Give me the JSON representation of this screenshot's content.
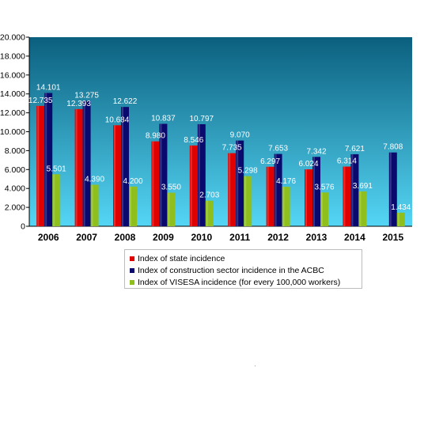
{
  "colors": {
    "state": "#e00000",
    "acbc": "#0a0a6e",
    "visesa": "#8fbf1c",
    "bar_label": "#ffffff",
    "plot_bg_top": "#0b5f7e",
    "plot_bg_bottom": "#55d6f5"
  },
  "legend": [
    {
      "key": "state",
      "label": "Index of state incidence"
    },
    {
      "key": "acbc",
      "label": "Index of construction sector incidence in the ACBC"
    },
    {
      "key": "visesa",
      "label": "Index of VISESA incidence (for every 100,000 workers)"
    }
  ],
  "chart_data": {
    "type": "bar",
    "categories": [
      "2006",
      "2007",
      "2008",
      "2009",
      "2010",
      "2011",
      "2012",
      "2013",
      "2014",
      "2015"
    ],
    "series": [
      {
        "key": "state",
        "name": "Index of state incidence",
        "values": [
          12735,
          12393,
          10684,
          8980,
          8546,
          7735,
          6297,
          6024,
          6314,
          null
        ],
        "labels": [
          "12.735",
          "12.393",
          "10.684",
          "8.980",
          "8.546",
          "7.735",
          "6.297",
          "6.024",
          "6.314",
          ""
        ]
      },
      {
        "key": "acbc",
        "name": "Index of construction sector incidence in the ACBC",
        "values": [
          14101,
          13275,
          12622,
          10837,
          10797,
          9070,
          7653,
          7342,
          7621,
          7808
        ],
        "labels": [
          "14.101",
          "13.275",
          "12.622",
          "10.837",
          "10.797",
          "9.070",
          "7.653",
          "7.342",
          "7.621",
          "7.808"
        ]
      },
      {
        "key": "visesa",
        "name": "Index of VISESA incidence (for every 100,000 workers)",
        "values": [
          5501,
          4390,
          4200,
          3550,
          2703,
          5298,
          4176,
          3576,
          3691,
          1434
        ],
        "labels": [
          "5.501",
          "4.390",
          "4.200",
          "3.550",
          "2.703",
          "5.298",
          "4.176",
          "3.576",
          "3.691",
          "1.434"
        ]
      }
    ],
    "yticks": [
      0,
      2000,
      4000,
      6000,
      8000,
      10000,
      12000,
      14000,
      16000,
      18000,
      20000
    ],
    "ytick_labels": [
      "0",
      "2.000",
      "4.000",
      "6.000",
      "8.000",
      "10.000",
      "12.000",
      "14.000",
      "16.000",
      "18.000",
      "20.000"
    ],
    "ylim": [
      0,
      20000
    ],
    "grid": false,
    "legend_position": "bottom"
  }
}
